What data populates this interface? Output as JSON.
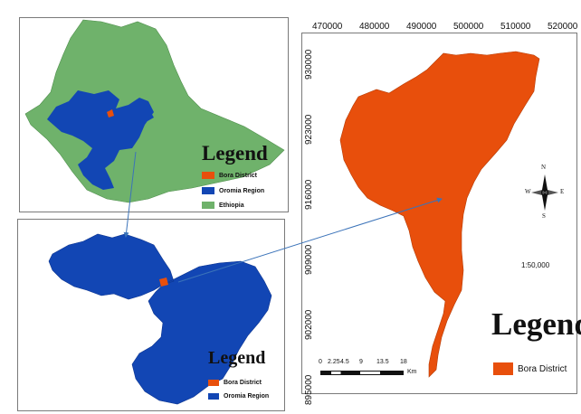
{
  "map_ethiopia": {
    "legend_title": "Legend",
    "legend_items": [
      {
        "label": "Bora District",
        "color": "#e84f0c"
      },
      {
        "label": "Oromia Region",
        "color": "#1246b4"
      },
      {
        "label": "Ethiopia",
        "color": "#6fb26b"
      }
    ]
  },
  "map_oromia": {
    "legend_title": "Legend",
    "legend_items": [
      {
        "label": "Bora District",
        "color": "#e84f0c"
      },
      {
        "label": "Oromia Region",
        "color": "#1246b4"
      }
    ]
  },
  "map_bora": {
    "legend_title": "Legend",
    "legend_items": [
      {
        "label": "Bora District",
        "color": "#e84f0c"
      }
    ],
    "x_ticks": [
      "470000",
      "480000",
      "490000",
      "500000",
      "510000",
      "520000"
    ],
    "y_ticks": [
      "930000",
      "923000",
      "916000",
      "909000",
      "902000",
      "895000"
    ],
    "north_arrow": {
      "n": "N",
      "s": "S",
      "e": "E",
      "w": "W"
    },
    "scale_ratio": "1:50,000",
    "scale_bar": {
      "labels": [
        "0",
        "2.25",
        "4.5",
        "9",
        "13.5",
        "18"
      ],
      "unit": "Km"
    }
  },
  "colors": {
    "bora": "#e84f0c",
    "oromia": "#1246b4",
    "ethiopia": "#6fb26b",
    "connector": "#3b73b9"
  }
}
